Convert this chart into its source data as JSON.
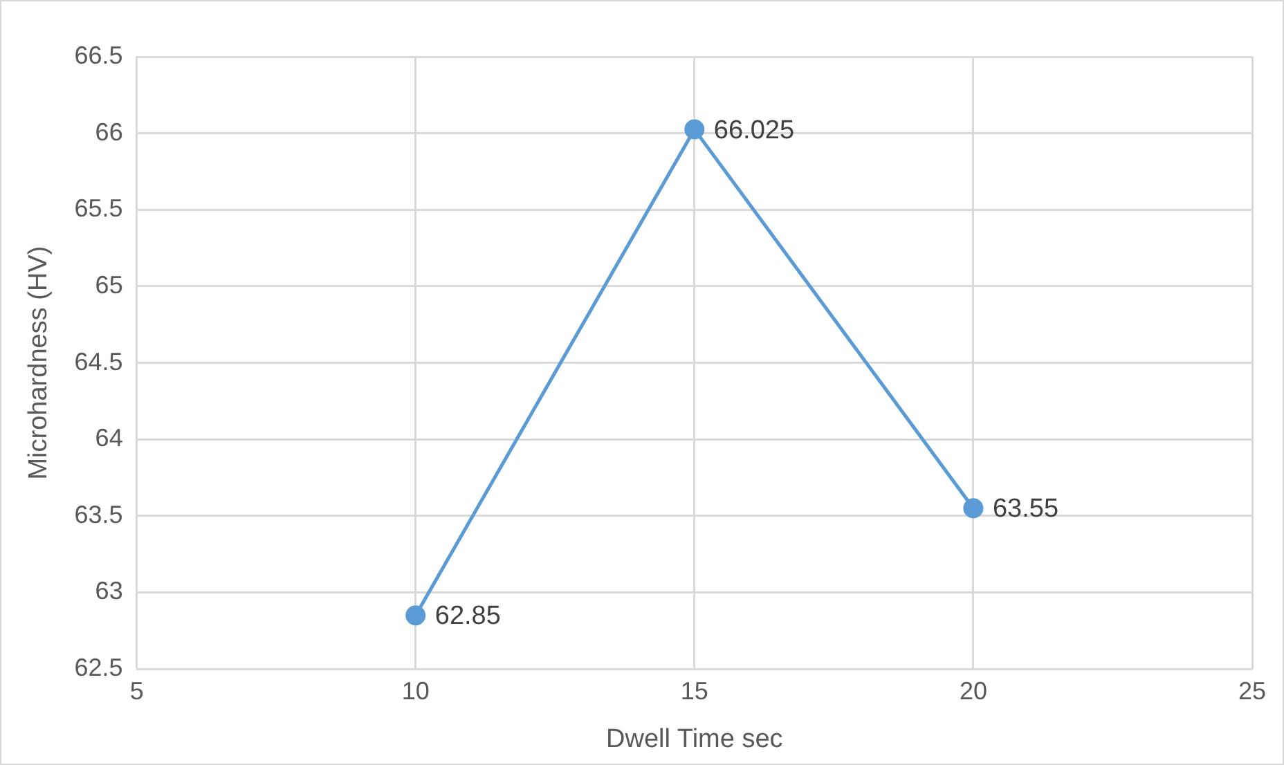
{
  "chart_data": {
    "type": "line",
    "xlabel": "Dwell Time sec",
    "ylabel": "Microhardness (HV)",
    "x": [
      10,
      15,
      20
    ],
    "values": [
      62.85,
      66.025,
      63.55
    ],
    "color": "#5b9bd5",
    "xlim": [
      5,
      25
    ],
    "xticks": [
      5,
      10,
      15,
      20,
      25
    ],
    "ylim": [
      62.5,
      66.5
    ],
    "yticks": [
      62.5,
      63,
      63.5,
      64,
      64.5,
      65,
      65.5,
      66,
      66.5
    ],
    "grid": true,
    "marker": "circle",
    "data_labels": true
  }
}
